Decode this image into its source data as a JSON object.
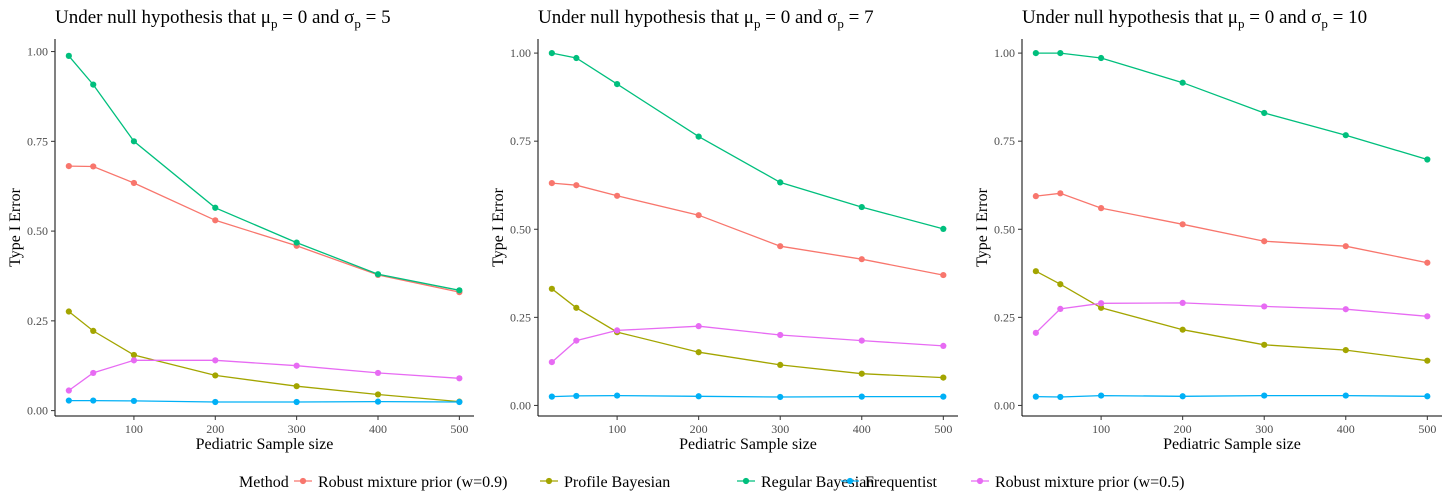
{
  "chart_data": [
    {
      "type": "line",
      "title": {
        "pre": "Under null hypothesis that μ",
        "sub1": "p",
        "mid": " = 0 and σ",
        "sub2": "p",
        "post": " = 5"
      },
      "xlabel": "Pediatric Sample size",
      "ylabel": "Type I Error",
      "x": [
        20,
        50,
        100,
        200,
        300,
        400,
        500
      ],
      "xticks": [
        100,
        200,
        300,
        400,
        500
      ],
      "yticks": [
        "0.00",
        "0.25",
        "0.50",
        "0.75",
        "1.00"
      ],
      "xlim": [
        3,
        518
      ],
      "ylim": [
        -0.015,
        1.035
      ],
      "series": [
        {
          "name": "Robust mixture prior (w=0.9)",
          "values": [
            0.681,
            0.68,
            0.634,
            0.53,
            0.459,
            0.378,
            0.33
          ]
        },
        {
          "name": "Profile Bayesian",
          "values": [
            0.276,
            0.222,
            0.155,
            0.098,
            0.068,
            0.045,
            0.025
          ]
        },
        {
          "name": "Regular Bayesian",
          "values": [
            0.988,
            0.908,
            0.75,
            0.565,
            0.468,
            0.38,
            0.335
          ]
        },
        {
          "name": "Frequentist",
          "values": [
            0.028,
            0.028,
            0.027,
            0.024,
            0.024,
            0.025,
            0.024
          ]
        },
        {
          "name": "Robust mixture prior (w=0.5)",
          "values": [
            0.056,
            0.105,
            0.14,
            0.14,
            0.125,
            0.105,
            0.09
          ]
        }
      ]
    },
    {
      "type": "line",
      "title": {
        "pre": "Under null hypothesis that μ",
        "sub1": "p",
        "mid": " = 0 and σ",
        "sub2": "p",
        "post": " = 7"
      },
      "xlabel": "Pediatric Sample size",
      "ylabel": "Type I Error",
      "x": [
        20,
        50,
        100,
        200,
        300,
        400,
        500
      ],
      "xticks": [
        100,
        200,
        300,
        400,
        500
      ],
      "yticks": [
        "0.00",
        "0.25",
        "0.50",
        "0.75",
        "1.00"
      ],
      "xlim": [
        3,
        518
      ],
      "ylim": [
        -0.03,
        1.04
      ],
      "series": [
        {
          "name": "Robust mixture prior (w=0.9)",
          "values": [
            0.631,
            0.625,
            0.595,
            0.54,
            0.452,
            0.415,
            0.37
          ]
        },
        {
          "name": "Profile Bayesian",
          "values": [
            0.331,
            0.277,
            0.208,
            0.151,
            0.115,
            0.09,
            0.079
          ]
        },
        {
          "name": "Regular Bayesian",
          "values": [
            1.0,
            0.986,
            0.912,
            0.763,
            0.633,
            0.563,
            0.501
          ]
        },
        {
          "name": "Frequentist",
          "values": [
            0.025,
            0.027,
            0.028,
            0.026,
            0.024,
            0.025,
            0.025
          ]
        },
        {
          "name": "Robust mixture prior (w=0.5)",
          "values": [
            0.123,
            0.184,
            0.213,
            0.225,
            0.2,
            0.184,
            0.169
          ]
        }
      ]
    },
    {
      "type": "line",
      "title": {
        "pre": "Under null hypothesis that μ",
        "sub1": "p",
        "mid": " = 0 and σ",
        "sub2": "p",
        "post": " = 10"
      },
      "xlabel": "Pediatric Sample size",
      "ylabel": "Type I Error",
      "x": [
        20,
        50,
        100,
        200,
        300,
        400,
        500
      ],
      "xticks": [
        100,
        200,
        300,
        400,
        500
      ],
      "yticks": [
        "0.00",
        "0.25",
        "0.50",
        "0.75",
        "1.00"
      ],
      "xlim": [
        3,
        518
      ],
      "ylim": [
        -0.03,
        1.04
      ],
      "series": [
        {
          "name": "Robust mixture prior (w=0.9)",
          "values": [
            0.594,
            0.602,
            0.56,
            0.514,
            0.466,
            0.452,
            0.405
          ]
        },
        {
          "name": "Profile Bayesian",
          "values": [
            0.381,
            0.344,
            0.277,
            0.215,
            0.172,
            0.157,
            0.127
          ]
        },
        {
          "name": "Regular Bayesian",
          "values": [
            1.0,
            1.0,
            0.986,
            0.916,
            0.83,
            0.767,
            0.698
          ]
        },
        {
          "name": "Frequentist",
          "values": [
            0.025,
            0.024,
            0.028,
            0.026,
            0.028,
            0.028,
            0.026
          ]
        },
        {
          "name": "Robust mixture prior (w=0.5)",
          "values": [
            0.206,
            0.274,
            0.29,
            0.291,
            0.281,
            0.273,
            0.253
          ]
        }
      ]
    }
  ],
  "legend": {
    "title": "Method",
    "position": "bottom",
    "items": [
      {
        "label": "Robust mixture prior (w=0.9)",
        "color": "#F8766D"
      },
      {
        "label": "Profile Bayesian",
        "color": "#A3A500"
      },
      {
        "label": "Regular Bayesian",
        "color": "#00BF7D"
      },
      {
        "label": "Frequentist",
        "color": "#00B0F6"
      },
      {
        "label": "Robust mixture prior (w=0.5)",
        "color": "#E76BF3"
      }
    ]
  }
}
